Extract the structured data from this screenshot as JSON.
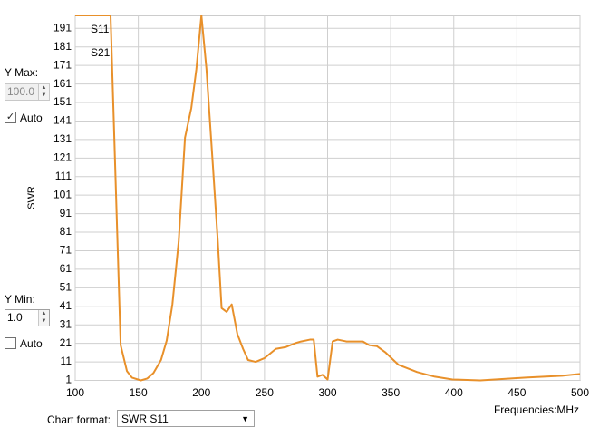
{
  "chart_data": {
    "type": "line",
    "y_label": "SWR",
    "x_label": "Frequencies:MHz",
    "x": [
      100,
      128,
      136,
      141,
      145,
      152,
      157,
      162,
      168,
      172.5,
      177,
      182,
      187,
      192,
      196,
      200,
      204,
      209,
      213,
      216,
      220,
      224,
      228.5,
      233,
      237,
      243,
      250,
      259,
      267,
      274,
      279,
      286,
      289,
      292,
      296,
      300,
      304,
      308,
      315,
      328,
      333,
      339,
      346,
      356,
      371,
      385,
      399,
      421,
      457,
      486,
      500
    ],
    "series": [
      {
        "name": "S11",
        "color": "#e8902a",
        "values": [
          198,
          198,
          20,
          6,
          2.5,
          1,
          2,
          5,
          12,
          22.5,
          42,
          76,
          132,
          148,
          169,
          198,
          169,
          118,
          76,
          40,
          38,
          42,
          26,
          18,
          12,
          11,
          13,
          18,
          19,
          21,
          22,
          23,
          23,
          3,
          4,
          1.5,
          22,
          23,
          22,
          22,
          20,
          19.5,
          16,
          9.5,
          5.5,
          3,
          1.5,
          1,
          2.5,
          3.5,
          4.5
        ]
      },
      {
        "name": "S21",
        "color": "#1f2f9f",
        "values": [
          null,
          null,
          null,
          null,
          null,
          null,
          null,
          null,
          null,
          null,
          null,
          null,
          null,
          null,
          null,
          null,
          null,
          null,
          null,
          null,
          null,
          null,
          null,
          null,
          null,
          null,
          null,
          null,
          null,
          null,
          null,
          null,
          null,
          null,
          null,
          null,
          null,
          null,
          null,
          null,
          null,
          null,
          null,
          null,
          null,
          null,
          null,
          null,
          null,
          null,
          null
        ]
      }
    ],
    "xlim": [
      100,
      500
    ],
    "xticks": [
      100,
      150,
      200,
      250,
      300,
      350,
      400,
      450,
      500
    ],
    "ylim": [
      1,
      198
    ],
    "yticks": [
      1,
      11,
      21,
      31,
      41,
      51,
      61,
      71,
      81,
      91,
      101,
      111,
      121,
      131,
      141,
      151,
      161,
      171,
      181,
      191
    ],
    "grid": true
  },
  "controls": {
    "y_max": {
      "label": "Y Max:",
      "value": "100.0",
      "auto_label": "Auto",
      "auto_checked": true,
      "enabled": false
    },
    "y_min": {
      "label": "Y Min:",
      "value": "1.0",
      "auto_label": "Auto",
      "auto_checked": false,
      "enabled": true
    },
    "chart_format": {
      "label": "Chart format:",
      "value": "SWR S11"
    }
  }
}
